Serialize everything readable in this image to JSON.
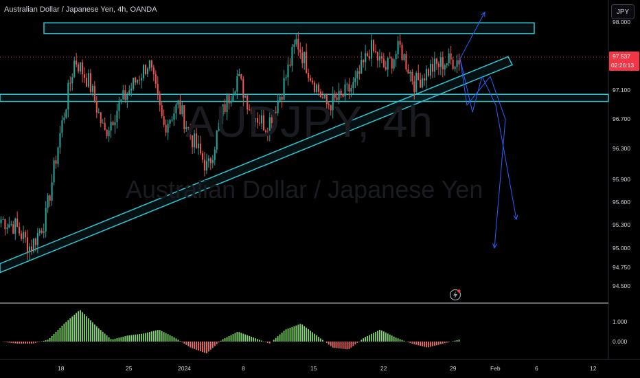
{
  "header": {
    "symbol_title": "Australian Dollar / Japanese Yen, 4h, OANDA",
    "currency_button": "JPY"
  },
  "watermark": {
    "ticker": "AUDJPY, 4h",
    "name": "Australian Dollar / Japanese Yen"
  },
  "price_axis": {
    "ticks": [
      "98.000",
      "97.100",
      "96.700",
      "96.300",
      "95.900",
      "95.600",
      "95.300",
      "95.000",
      "94.750",
      "94.500"
    ],
    "last_price_label": "97.537",
    "countdown_label": "02:26:13",
    "last_price_color": "#f23645"
  },
  "osc_axis": {
    "ticks": [
      "1.000",
      "0.000"
    ]
  },
  "time_axis": {
    "ticks": [
      "18",
      "25",
      "2024",
      "8",
      "15",
      "22",
      "29",
      "Feb",
      "6",
      "12"
    ]
  },
  "colors": {
    "bull": "#26a69a",
    "bear": "#ef5350",
    "zone": "#2ec7d6",
    "projection": "#2962ff",
    "osc_pos": "#7fd86b",
    "osc_neg": "#f06b6b"
  },
  "icons": {
    "flash": "lightning-icon"
  },
  "chart_data": [
    {
      "type": "candlestick",
      "title": "Australian Dollar / Japanese Yen, 4h, OANDA",
      "ylim": [
        94.3,
        98.0
      ],
      "x_ticks": [
        "18",
        "25",
        "2024",
        "8",
        "15",
        "22",
        "29",
        "Feb",
        "6",
        "12"
      ],
      "last_price": 97.537,
      "keypoints_close": [
        95.3,
        95.2,
        94.9,
        95.3,
        96.5,
        97.55,
        97.2,
        96.5,
        96.9,
        97.2,
        97.5,
        96.6,
        96.9,
        96.4,
        96.0,
        96.8,
        97.3,
        96.8,
        96.6,
        97.1,
        97.8,
        97.3,
        96.9,
        97.0,
        97.2,
        97.7,
        97.4,
        97.7,
        97.2,
        97.4,
        97.5,
        97.537
      ],
      "annotations": {
        "resistance_zone": [
          97.9,
          98.05
        ],
        "support_zone": [
          96.95,
          97.05
        ],
        "rising_trendline": {
          "from": 94.7,
          "to": 97.5
        },
        "projection_paths": [
          [
            97.55,
            98.2
          ],
          [
            97.55,
            96.8,
            97.3,
            96.9,
            95.3
          ],
          [
            97.55,
            96.9,
            97.3,
            96.7,
            94.9
          ]
        ]
      }
    },
    {
      "type": "bar",
      "title": "oscillator",
      "ylim": [
        -0.8,
        1.8
      ],
      "y_ticks": [
        "1.000",
        "0.000"
      ],
      "keypoints": [
        0,
        -0.1,
        -0.1,
        0.1,
        0.9,
        1.6,
        0.8,
        0.1,
        0.3,
        0.4,
        0.6,
        0.2,
        -0.3,
        -0.6,
        0.1,
        0.5,
        0.2,
        -0.1,
        0.6,
        0.9,
        0.3,
        -0.3,
        -0.4,
        0.2,
        0.6,
        0.2,
        -0.1,
        -0.3,
        -0.1,
        0.1
      ]
    }
  ]
}
